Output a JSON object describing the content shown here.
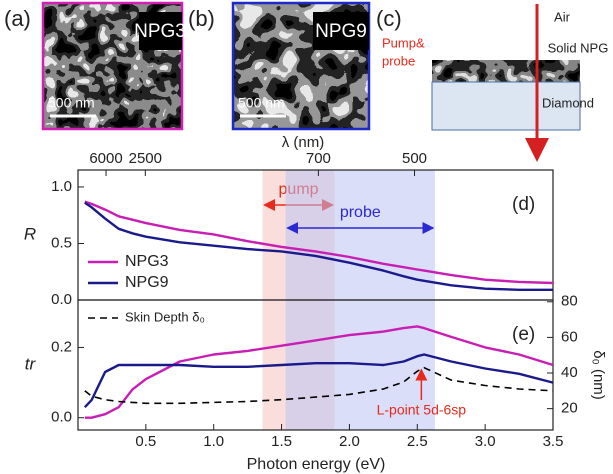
{
  "panels": [
    {
      "label": "(a)",
      "tag": "NPG3",
      "scale_bar": "500 nm"
    },
    {
      "label": "(b)",
      "tag": "NPG9",
      "scale_bar": "500 nm"
    }
  ],
  "diagram": {
    "label": "(c)",
    "beam": [
      "Pump&",
      "probe"
    ],
    "air": "Air",
    "film": "Solid NPG",
    "substrate": "Diamond"
  },
  "chart_data": [
    {
      "type": "line",
      "panel_label": "(d)",
      "ylabel": "R",
      "x2label": "λ (nm)",
      "x2ticks": [
        6000,
        2500,
        700,
        500
      ],
      "xlim": [
        0,
        3.5
      ],
      "ylim": [
        0,
        1.15
      ],
      "yticks": [
        {
          "value": 0,
          "label": "0.0"
        },
        0.5,
        {
          "value": 1,
          "label": "1.0"
        }
      ],
      "x": [
        0.05,
        0.1,
        0.2,
        0.3,
        0.4,
        0.5,
        0.75,
        1.0,
        1.25,
        1.5,
        1.75,
        2.0,
        2.25,
        2.4,
        2.5,
        2.55,
        2.75,
        3.0,
        3.25,
        3.5
      ],
      "series": [
        {
          "name": "NPG3",
          "color": "#c81eb4",
          "values": [
            0.87,
            0.85,
            0.8,
            0.74,
            0.71,
            0.68,
            0.62,
            0.58,
            0.52,
            0.47,
            0.43,
            0.38,
            0.32,
            0.29,
            0.27,
            0.26,
            0.22,
            0.18,
            0.16,
            0.15
          ]
        },
        {
          "name": "NPG9",
          "color": "#1a1a8c",
          "values": [
            0.86,
            0.82,
            0.72,
            0.63,
            0.59,
            0.56,
            0.51,
            0.48,
            0.45,
            0.43,
            0.39,
            0.33,
            0.26,
            0.21,
            0.18,
            0.17,
            0.13,
            0.1,
            0.09,
            0.09
          ]
        }
      ],
      "bands": [
        {
          "label": "pump",
          "range": [
            1.36,
            1.89
          ],
          "color": "#f6c3bd",
          "label_color": "#e62a1c"
        },
        {
          "label": "probe",
          "range": [
            1.53,
            2.63
          ],
          "color": "#bcc3f2",
          "label_color": "#2a2ad0"
        }
      ],
      "legend": "lower left"
    },
    {
      "type": "line",
      "panel_label": "(e)",
      "ylabel": "tr",
      "y2label": "δ₀ (nm)",
      "xlabel": "Photon energy (eV)",
      "xlim": [
        0,
        3.5
      ],
      "ylim": [
        -0.035,
        0.335
      ],
      "yticks": [
        {
          "value": 0,
          "label": "0.0"
        },
        0.2
      ],
      "y2lim": [
        8,
        81
      ],
      "y2ticks": [
        20,
        40,
        60,
        80
      ],
      "xticks": [
        0.5,
        {
          "value": 1,
          "label": "1.0"
        },
        1.5,
        {
          "value": 2,
          "label": "2.0"
        },
        2.5,
        {
          "value": 3,
          "label": "3.0"
        },
        3.5
      ],
      "x": [
        0.05,
        0.1,
        0.2,
        0.3,
        0.4,
        0.5,
        0.75,
        1.0,
        1.25,
        1.5,
        1.75,
        2.0,
        2.25,
        2.4,
        2.5,
        2.55,
        2.75,
        3.0,
        3.25,
        3.5
      ],
      "series": [
        {
          "color": "#c81eb4",
          "values": [
            0.0,
            0.0,
            0.01,
            0.03,
            0.08,
            0.11,
            0.16,
            0.18,
            0.19,
            0.205,
            0.22,
            0.235,
            0.245,
            0.255,
            0.26,
            0.255,
            0.23,
            0.2,
            0.18,
            0.15
          ]
        },
        {
          "color": "#1a1a8c",
          "values": [
            0.03,
            0.05,
            0.13,
            0.15,
            0.15,
            0.15,
            0.15,
            0.145,
            0.145,
            0.15,
            0.155,
            0.155,
            0.15,
            0.16,
            0.175,
            0.18,
            0.16,
            0.14,
            0.125,
            0.1
          ]
        },
        {
          "name": "Skin Depth δ₀",
          "color": "#000000",
          "dash": true,
          "axis": "y2",
          "values": [
            30,
            27,
            25,
            24,
            23.5,
            23,
            23,
            23.5,
            24,
            25,
            26.5,
            28,
            31,
            35,
            41,
            43,
            36,
            33,
            31,
            30
          ]
        }
      ],
      "annotation": {
        "text": "L-point 5d-6sp",
        "x": 2.53,
        "color": "#e62a1c"
      },
      "legend": "upper left"
    }
  ]
}
